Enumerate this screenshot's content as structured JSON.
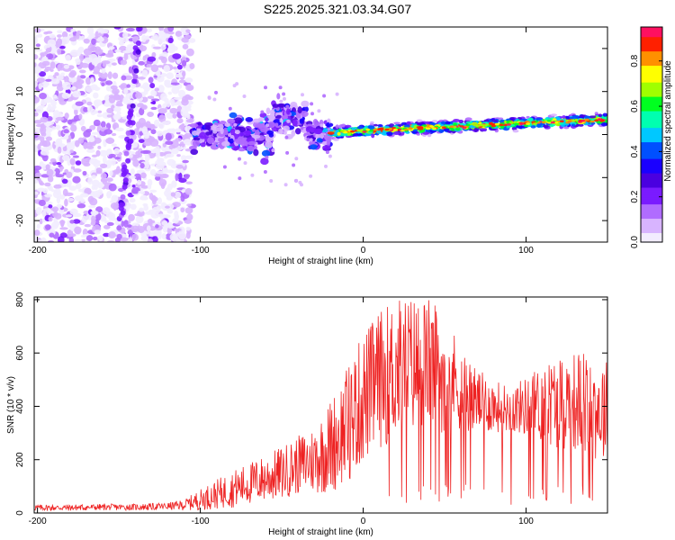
{
  "title": "S225.2025.321.03.34.G07",
  "colors": {
    "line": "#ee2222",
    "axis": "#000000",
    "colormap": [
      "#f2ecff",
      "#d8b4ff",
      "#b06cff",
      "#7a1bff",
      "#4a00e0",
      "#1a00ff",
      "#0050ff",
      "#00c8ff",
      "#00ffb0",
      "#00ff20",
      "#a0ff00",
      "#ffff00",
      "#ff9000",
      "#ff2000",
      "#ff1060"
    ]
  },
  "chart_data": [
    {
      "type": "heatmap",
      "name": "spectrogram",
      "title": "S225.2025.321.03.34.G07",
      "xlabel": "Height of straight line (km)",
      "ylabel": "Frequency (Hz)",
      "xlim": [
        -202,
        150
      ],
      "ylim": [
        -25,
        25
      ],
      "xticks": [
        -200,
        -100,
        0,
        100
      ],
      "yticks": [
        20,
        10,
        0,
        -10,
        -20
      ],
      "colorbar": {
        "label": "Normalized spectral amplitude",
        "range": [
          0,
          0.95
        ],
        "ticks": [
          0.0,
          0.2,
          0.4,
          0.6,
          0.8
        ]
      },
      "regions": [
        {
          "x_range": [
            -202,
            -105
          ],
          "y_range": [
            -25,
            25
          ],
          "amplitude": "0.0-0.2",
          "pattern": "scattered noise"
        },
        {
          "x_range": [
            -105,
            -20
          ],
          "y_range": [
            -10,
            10
          ],
          "amplitude": "0.1-0.5",
          "pattern": "patchy signal"
        },
        {
          "x_range": [
            -20,
            150
          ],
          "center_freq_start": 0.5,
          "center_freq_end": 3.5,
          "amplitude": "0.4-0.95",
          "pattern": "narrow signal track"
        }
      ]
    },
    {
      "type": "line",
      "name": "snr",
      "xlabel": "Height of straight line (km)",
      "ylabel": "SNR (10 * v/v)",
      "xlim": [
        -202,
        150
      ],
      "ylim": [
        0,
        810
      ],
      "xticks": [
        -200,
        -100,
        0,
        100
      ],
      "yticks": [
        0,
        200,
        400,
        600,
        800
      ],
      "x": [
        -202,
        -180,
        -160,
        -140,
        -120,
        -110,
        -100,
        -90,
        -80,
        -70,
        -60,
        -50,
        -40,
        -30,
        -20,
        -10,
        0,
        10,
        20,
        30,
        40,
        50,
        60,
        70,
        80,
        90,
        100,
        110,
        120,
        130,
        140,
        150
      ],
      "values": [
        20,
        20,
        22,
        22,
        25,
        30,
        50,
        70,
        90,
        110,
        130,
        150,
        180,
        200,
        250,
        330,
        430,
        500,
        540,
        560,
        560,
        530,
        470,
        420,
        400,
        390,
        400,
        410,
        420,
        420,
        400,
        380
      ],
      "spread": [
        12,
        12,
        12,
        12,
        14,
        20,
        40,
        55,
        70,
        80,
        90,
        100,
        110,
        130,
        180,
        220,
        250,
        260,
        270,
        260,
        250,
        230,
        160,
        120,
        100,
        90,
        110,
        150,
        180,
        190,
        200,
        200
      ]
    }
  ]
}
